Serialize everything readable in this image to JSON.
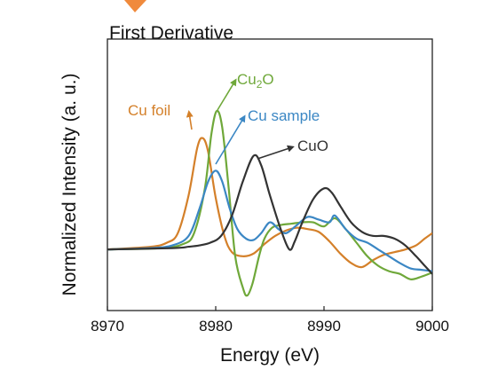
{
  "chart_data": {
    "type": "line",
    "title": "First Derivative",
    "xlabel": "Energy (eV)",
    "ylabel": "Normalized Intensity (a. u.)",
    "xlim": [
      8970,
      9000
    ],
    "ylim": [
      -0.45,
      1.55
    ],
    "x_ticks": [
      8970,
      8980,
      8990,
      9000
    ],
    "y_ticks_shown": false,
    "grid": false,
    "legend": "annotations",
    "series": [
      {
        "name": "Cu foil",
        "color": "#D4802A",
        "points": [
          [
            8970,
            0.0
          ],
          [
            8974,
            0.02
          ],
          [
            8975.5,
            0.05
          ],
          [
            8976.5,
            0.12
          ],
          [
            8977.5,
            0.4
          ],
          [
            8978.3,
            0.75
          ],
          [
            8978.8,
            0.82
          ],
          [
            8979.3,
            0.72
          ],
          [
            8980,
            0.38
          ],
          [
            8980.8,
            0.1
          ],
          [
            8981.5,
            -0.02
          ],
          [
            8982.5,
            -0.05
          ],
          [
            8983.5,
            -0.03
          ],
          [
            8984.5,
            0.04
          ],
          [
            8985.5,
            0.1
          ],
          [
            8986.5,
            0.14
          ],
          [
            8987.5,
            0.16
          ],
          [
            8988.5,
            0.15
          ],
          [
            8989.5,
            0.13
          ],
          [
            8990.5,
            0.06
          ],
          [
            8991.5,
            -0.03
          ],
          [
            8992.5,
            -0.1
          ],
          [
            8993.5,
            -0.13
          ],
          [
            8994.5,
            -0.08
          ],
          [
            8995.5,
            -0.04
          ],
          [
            8996.5,
            -0.02
          ],
          [
            8997.5,
            0.0
          ],
          [
            8998.5,
            0.03
          ],
          [
            8999.3,
            0.08
          ],
          [
            9000,
            0.12
          ]
        ]
      },
      {
        "name": "Cu2O",
        "label_base": "Cu",
        "label_sub": "2",
        "label_tail": "O",
        "color": "#6FA83A",
        "points": [
          [
            8970,
            0.0
          ],
          [
            8975,
            0.01
          ],
          [
            8977,
            0.04
          ],
          [
            8978,
            0.12
          ],
          [
            8979,
            0.45
          ],
          [
            8979.6,
            0.85
          ],
          [
            8980.1,
            1.02
          ],
          [
            8980.6,
            0.9
          ],
          [
            8981.2,
            0.45
          ],
          [
            8981.8,
            -0.05
          ],
          [
            8982.5,
            -0.28
          ],
          [
            8982.9,
            -0.34
          ],
          [
            8983.4,
            -0.25
          ],
          [
            8984,
            -0.05
          ],
          [
            8984.5,
            0.08
          ],
          [
            8985.2,
            0.16
          ],
          [
            8986,
            0.18
          ],
          [
            8987,
            0.19
          ],
          [
            8988,
            0.2
          ],
          [
            8989,
            0.2
          ],
          [
            8990,
            0.17
          ],
          [
            8991,
            0.23
          ],
          [
            8992,
            0.15
          ],
          [
            8993,
            0.05
          ],
          [
            8994,
            -0.05
          ],
          [
            8995,
            -0.12
          ],
          [
            8996,
            -0.16
          ],
          [
            8997,
            -0.18
          ],
          [
            8998,
            -0.22
          ],
          [
            8999,
            -0.2
          ],
          [
            9000,
            -0.17
          ]
        ]
      },
      {
        "name": "Cu sample",
        "color": "#3B87C4",
        "points": [
          [
            8970,
            0.0
          ],
          [
            8974,
            0.01
          ],
          [
            8976,
            0.03
          ],
          [
            8977.5,
            0.1
          ],
          [
            8978.5,
            0.3
          ],
          [
            8979.3,
            0.5
          ],
          [
            8980,
            0.58
          ],
          [
            8980.6,
            0.5
          ],
          [
            8981.3,
            0.3
          ],
          [
            8982,
            0.15
          ],
          [
            8982.8,
            0.08
          ],
          [
            8983.5,
            0.07
          ],
          [
            8984.2,
            0.12
          ],
          [
            8985,
            0.2
          ],
          [
            8985.8,
            0.15
          ],
          [
            8986.5,
            0.12
          ],
          [
            8987.5,
            0.18
          ],
          [
            8988.5,
            0.24
          ],
          [
            8989.5,
            0.22
          ],
          [
            8990.5,
            0.2
          ],
          [
            8991,
            0.25
          ],
          [
            8992,
            0.15
          ],
          [
            8993,
            0.08
          ],
          [
            8994,
            0.05
          ],
          [
            8995,
            0.0
          ],
          [
            8996,
            -0.05
          ],
          [
            8997,
            -0.1
          ],
          [
            8998,
            -0.14
          ],
          [
            8999,
            -0.15
          ],
          [
            9000,
            -0.16
          ]
        ]
      },
      {
        "name": "CuO",
        "color": "#333333",
        "points": [
          [
            8970,
            0.0
          ],
          [
            8976,
            0.01
          ],
          [
            8977.5,
            0.02
          ],
          [
            8978.5,
            0.03
          ],
          [
            8979.5,
            0.05
          ],
          [
            8980.5,
            0.1
          ],
          [
            8981.5,
            0.25
          ],
          [
            8982.5,
            0.5
          ],
          [
            8983.5,
            0.69
          ],
          [
            8984.2,
            0.62
          ],
          [
            8985,
            0.4
          ],
          [
            8986,
            0.15
          ],
          [
            8986.8,
            0.0
          ],
          [
            8987.3,
            0.06
          ],
          [
            8988,
            0.2
          ],
          [
            8989,
            0.37
          ],
          [
            8990,
            0.45
          ],
          [
            8990.7,
            0.42
          ],
          [
            8991.5,
            0.32
          ],
          [
            8992.5,
            0.2
          ],
          [
            8993.5,
            0.13
          ],
          [
            8994.5,
            0.1
          ],
          [
            8995.5,
            0.1
          ],
          [
            8996.5,
            0.08
          ],
          [
            8997.5,
            0.03
          ],
          [
            8998.5,
            -0.05
          ],
          [
            8999.3,
            -0.12
          ],
          [
            9000,
            -0.18
          ]
        ]
      }
    ]
  }
}
